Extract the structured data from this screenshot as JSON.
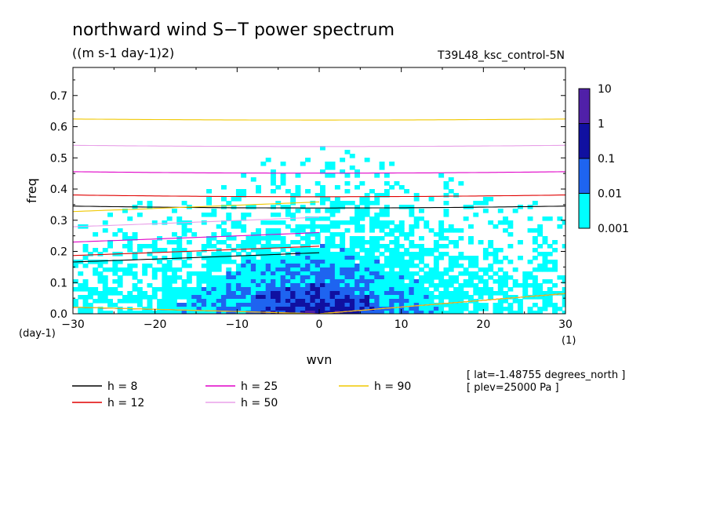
{
  "chart_data": {
    "type": "heatmap",
    "title": "northward wind S−T power spectrum",
    "subtitle": "((m s-1 day-1)2)",
    "experiment": "T39L48_ksc_control-5N",
    "xlabel": "wvn",
    "ylabel": "freq",
    "x_unit": "(1)",
    "y_unit": "(day-1)",
    "xlim": [
      -30,
      30
    ],
    "ylim": [
      0,
      0.79
    ],
    "x_ticks": [
      "−30",
      "−20",
      "−10",
      "0",
      "10",
      "20",
      "30"
    ],
    "x_tick_values": [
      -30,
      -20,
      -10,
      0,
      10,
      20,
      30
    ],
    "y_ticks": [
      "0.0",
      "0.1",
      "0.2",
      "0.3",
      "0.4",
      "0.5",
      "0.6",
      "0.7"
    ],
    "y_tick_values": [
      0,
      0.1,
      0.2,
      0.3,
      0.4,
      0.5,
      0.6,
      0.7
    ],
    "colorbar": {
      "levels": [
        "10",
        "1",
        "0.1",
        "0.01",
        "0.001"
      ],
      "colors": [
        "#5020a8",
        "#1010a0",
        "#1e64f0",
        "#00ffff"
      ]
    },
    "dispersion_curves": [
      {
        "label": "h = 8",
        "color": "#000000",
        "h": 8
      },
      {
        "label": "h = 12",
        "color": "#e00000",
        "h": 12
      },
      {
        "label": "h = 25",
        "color": "#e000c8",
        "h": 25
      },
      {
        "label": "h = 50",
        "color": "#e8a0e8",
        "h": 50
      },
      {
        "label": "h = 90",
        "color": "#f0c800",
        "h": 90
      }
    ],
    "annotations": [
      "[ lat=-1.48755 degrees_north ]",
      "[ plev=25000 Pa ]"
    ]
  }
}
